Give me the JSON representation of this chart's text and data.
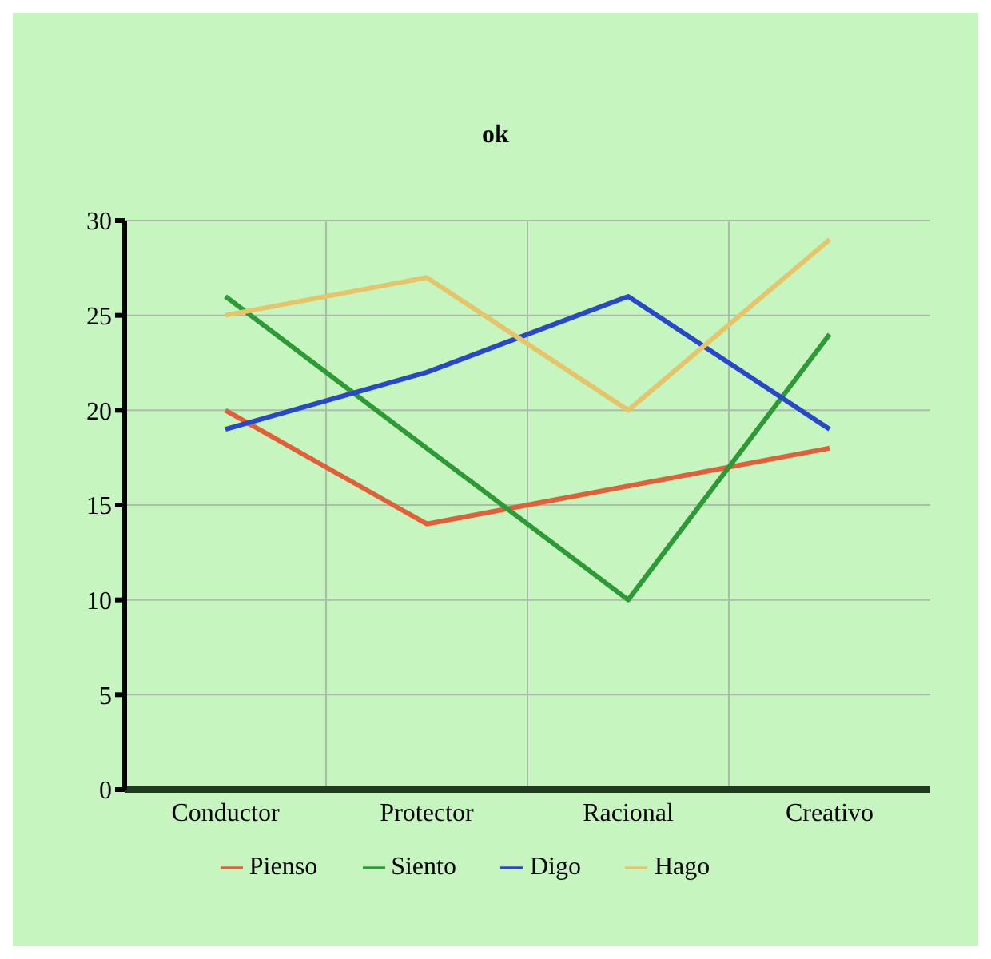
{
  "chart_data": {
    "type": "line",
    "title": "ok",
    "categories": [
      "Conductor",
      "Protector",
      "Racional",
      "Creativo"
    ],
    "series": [
      {
        "name": "Pienso",
        "color": "#e0603a",
        "values": [
          20,
          14,
          16,
          18
        ]
      },
      {
        "name": "Siento",
        "color": "#2e9a36",
        "values": [
          26,
          18,
          10,
          24
        ]
      },
      {
        "name": "Digo",
        "color": "#2848c8",
        "values": [
          19,
          22,
          26,
          19
        ]
      },
      {
        "name": "Hago",
        "color": "#e6c46a",
        "values": [
          25,
          27,
          20,
          29
        ]
      }
    ],
    "ylim": [
      0,
      30
    ],
    "yticks": [
      0,
      5,
      10,
      15,
      20,
      25,
      30
    ],
    "grid": true,
    "legend": "bottom",
    "marker": "none",
    "line_style": "solid"
  }
}
